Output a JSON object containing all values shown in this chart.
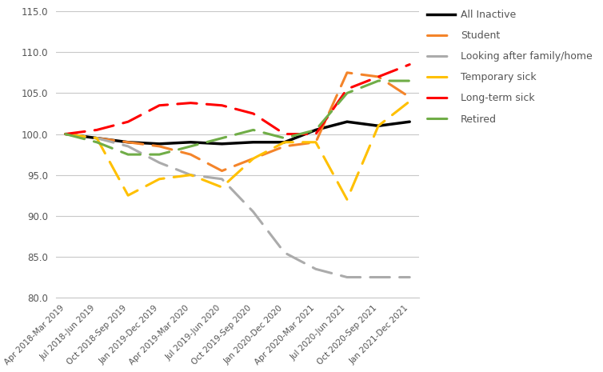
{
  "x_labels": [
    "Apr 2018-Mar 2019",
    "Jul 2018-Jun 2019",
    "Oct 2018-Sep 2019",
    "Jan 2019-Dec 2019",
    "Apr 2019-Mar 2020",
    "Jul 2019-Jun 2020",
    "Oct 2019-Sep 2020",
    "Jan 2020-Dec 2020",
    "Apr 2020-Mar 2021",
    "Jul 2020-Jun 2021",
    "Oct 2020-Sep 2021",
    "Jan 2021-Dec 2021"
  ],
  "series": {
    "All Inactive": {
      "values": [
        100.0,
        99.5,
        99.0,
        98.8,
        99.0,
        98.8,
        99.0,
        99.0,
        100.5,
        101.5,
        101.0,
        101.5
      ],
      "color": "#000000",
      "linestyle": "solid",
      "linewidth": 2.5,
      "dash_on": null,
      "dash_off": null
    },
    "Student": {
      "values": [
        100.0,
        99.5,
        99.0,
        98.5,
        97.5,
        95.5,
        97.0,
        98.5,
        99.0,
        107.5,
        107.0,
        104.5
      ],
      "color": "#F4842A",
      "linestyle": "dashed",
      "linewidth": 2.2,
      "dash_on": 8,
      "dash_off": 4
    },
    "Looking after family/home": {
      "values": [
        100.0,
        99.5,
        98.5,
        96.5,
        95.0,
        94.5,
        90.5,
        85.5,
        83.5,
        82.5,
        82.5,
        82.5
      ],
      "color": "#ABABAB",
      "linestyle": "dashed",
      "linewidth": 2.2,
      "dash_on": 8,
      "dash_off": 4
    },
    "Temporary sick": {
      "values": [
        100.0,
        99.5,
        92.5,
        94.5,
        95.0,
        93.5,
        97.0,
        99.0,
        99.0,
        92.0,
        101.0,
        104.0
      ],
      "color": "#FFC000",
      "linestyle": "dashed",
      "linewidth": 2.2,
      "dash_on": 8,
      "dash_off": 4
    },
    "Long-term sick": {
      "values": [
        100.0,
        100.5,
        101.5,
        103.5,
        103.8,
        103.5,
        102.5,
        100.0,
        100.0,
        105.5,
        107.0,
        108.5
      ],
      "color": "#FF0000",
      "linestyle": "dashed",
      "linewidth": 2.2,
      "dash_on": 8,
      "dash_off": 4
    },
    "Retired": {
      "values": [
        100.0,
        99.0,
        97.5,
        97.5,
        98.5,
        99.5,
        100.5,
        99.5,
        100.5,
        105.0,
        106.5,
        106.5
      ],
      "color": "#70AD47",
      "linestyle": "dashed",
      "linewidth": 2.2,
      "dash_on": 8,
      "dash_off": 4
    }
  },
  "ylim": [
    80.0,
    115.0
  ],
  "yticks": [
    80.0,
    85.0,
    90.0,
    95.0,
    100.0,
    105.0,
    110.0,
    115.0
  ],
  "grid_color": "#C8C8C8",
  "background_color": "#FFFFFF",
  "legend_order": [
    "All Inactive",
    "Student",
    "Looking after family/home",
    "Temporary sick",
    "Long-term sick",
    "Retired"
  ]
}
